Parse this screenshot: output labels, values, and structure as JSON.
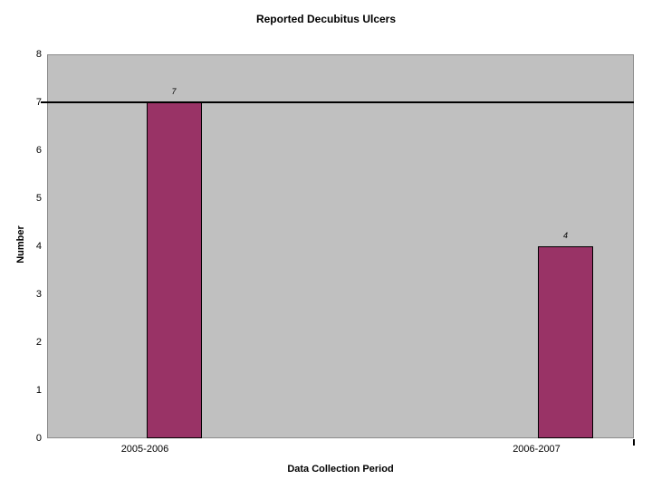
{
  "chart_data": {
    "type": "bar",
    "title": "Reported Decubitus Ulcers",
    "categories": [
      "2005-2006",
      "2006-2007"
    ],
    "values": [
      7,
      4
    ],
    "data_labels": [
      "7",
      "4"
    ],
    "xlabel": "Data Collection Period",
    "ylabel": "Number",
    "ylim": [
      0,
      8
    ],
    "yticks": [
      0,
      1,
      2,
      3,
      4,
      5,
      6,
      7,
      8
    ],
    "reference_line_y": 7,
    "grid": "off",
    "legend": "none",
    "colors": {
      "bar_fill": "#993366",
      "bar_border": "#000000",
      "plot_background": "#c0c0c0",
      "plot_border": "#8b8b8b",
      "reference_line": "#000000",
      "text": "#000000",
      "page_background": "#ffffff"
    }
  }
}
